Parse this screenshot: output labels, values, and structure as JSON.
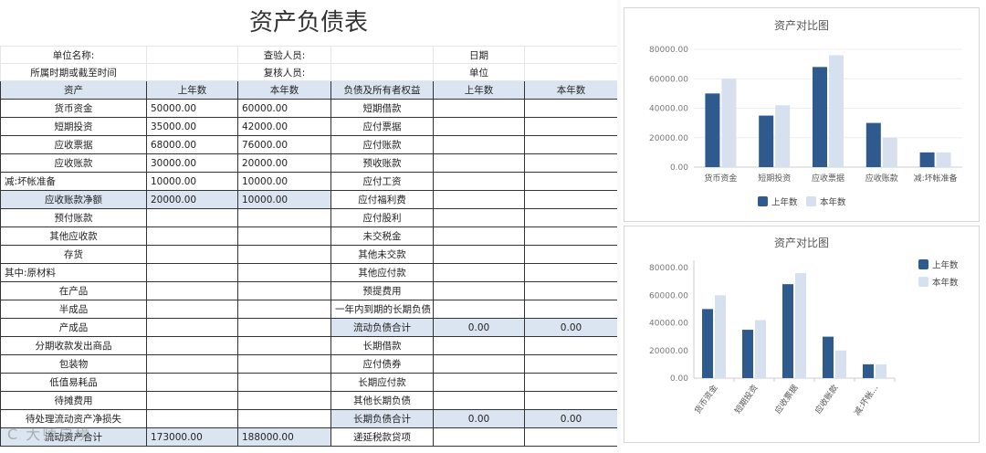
{
  "sheet": {
    "title": "资产负债表",
    "meta": [
      [
        "单位名称:",
        "",
        "查验人员:",
        "",
        "日期",
        ""
      ],
      [
        "所属时期或截至时间",
        "",
        "复核人员:",
        "",
        "单位",
        ""
      ]
    ],
    "headers": [
      "资产",
      "上年数",
      "本年数",
      "负债及所有者权益",
      "上年数",
      "本年数"
    ],
    "rows": [
      [
        "货币资金",
        "50000.00",
        "60000.00",
        "短期借款",
        "",
        ""
      ],
      [
        "短期投资",
        "35000.00",
        "42000.00",
        "应付票据",
        "",
        ""
      ],
      [
        "应收票据",
        "68000.00",
        "76000.00",
        "应付账款",
        "",
        ""
      ],
      [
        "应收账款",
        "30000.00",
        "20000.00",
        "预收账款",
        "",
        ""
      ],
      [
        "减:坏帐准备",
        "10000.00",
        "10000.00",
        "应付工资",
        "",
        ""
      ],
      [
        "应收账款净额",
        "20000.00",
        "10000.00",
        "应付福利费",
        "",
        ""
      ],
      [
        "预付账款",
        "",
        "",
        "应付股利",
        "",
        ""
      ],
      [
        "其他应收款",
        "",
        "",
        "未交税金",
        "",
        ""
      ],
      [
        "存货",
        "",
        "",
        "其他未交款",
        "",
        ""
      ],
      [
        "其中:原材料",
        "",
        "",
        "其他应付款",
        "",
        ""
      ],
      [
        "在产品",
        "",
        "",
        "预提费用",
        "",
        ""
      ],
      [
        "半成品",
        "",
        "",
        "一年内到期的长期负债",
        "",
        ""
      ],
      [
        "产成品",
        "",
        "",
        "流动负债合计",
        "0.00",
        "0.00"
      ],
      [
        "分期收款发出商品",
        "",
        "",
        "长期借款",
        "",
        ""
      ],
      [
        "包装物",
        "",
        "",
        "应付债券",
        "",
        ""
      ],
      [
        "低值易耗品",
        "",
        "",
        "长期应付款",
        "",
        ""
      ],
      [
        "待摊费用",
        "",
        "",
        "其他长期负债",
        "",
        ""
      ],
      [
        "待处理流动资产净损失",
        "",
        "",
        "长期负债合计",
        "0.00",
        "0.00"
      ],
      [
        "流动资产合计",
        "173000.00",
        "188000.00",
        "递延税款贷项",
        "",
        ""
      ]
    ],
    "highlight_rows": [
      5,
      12,
      17,
      18
    ],
    "indented_rows": [
      4,
      9
    ],
    "watermark": "C 大师启境"
  },
  "colors": {
    "prev_year": "#2e5a8e",
    "this_year": "#d7e0ee",
    "header_fill": "#dbe5f1"
  },
  "chart_data": [
    {
      "type": "bar",
      "title": "资产对比图",
      "categories": [
        "货币资金",
        "短期投资",
        "应收票据",
        "应收账款",
        "减:坏帐准备"
      ],
      "tick_labels": [
        "货币资金",
        "短期投资",
        "应收票据",
        "应收账款",
        "减:坏帐准备"
      ],
      "series": [
        {
          "name": "上年数",
          "values": [
            50000,
            35000,
            68000,
            30000,
            10000
          ]
        },
        {
          "name": "本年数",
          "values": [
            60000,
            42000,
            76000,
            20000,
            10000
          ]
        }
      ],
      "y_ticks": [
        "0.00",
        "20000.00",
        "40000.00",
        "60000.00",
        "80000.00"
      ],
      "ylim": [
        0,
        80000
      ],
      "legend_position": "bottom",
      "grid": true
    },
    {
      "type": "bar",
      "title": "资产对比图",
      "categories": [
        "货币资金",
        "短期投资",
        "应收票据",
        "应收账款",
        "减:坏帐准备"
      ],
      "tick_labels": [
        "货币资金",
        "短期投资",
        "应收票据",
        "应收账款",
        "减:坏帐..."
      ],
      "series": [
        {
          "name": "上年数",
          "values": [
            50000,
            35000,
            68000,
            30000,
            10000
          ]
        },
        {
          "name": "本年数",
          "values": [
            60000,
            42000,
            76000,
            20000,
            10000
          ]
        }
      ],
      "y_ticks": [
        "0.00",
        "20000.00",
        "40000.00",
        "60000.00",
        "80000.00"
      ],
      "ylim": [
        0,
        80000
      ],
      "legend_position": "right",
      "grid": false,
      "rotated_labels": true
    }
  ]
}
